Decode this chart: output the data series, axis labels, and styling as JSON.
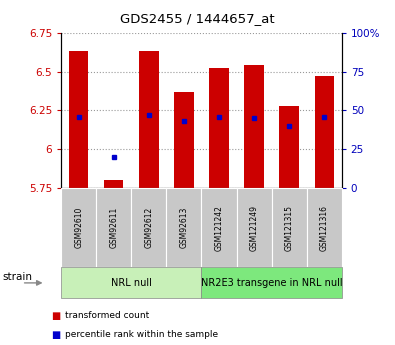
{
  "title": "GDS2455 / 1444657_at",
  "samples": [
    "GSM92610",
    "GSM92611",
    "GSM92612",
    "GSM92613",
    "GSM121242",
    "GSM121249",
    "GSM121315",
    "GSM121316"
  ],
  "transformed_counts": [
    6.63,
    5.8,
    6.63,
    6.37,
    6.52,
    6.54,
    6.28,
    6.47
  ],
  "percentile_ranks": [
    46,
    20,
    47,
    43,
    46,
    45,
    40,
    46
  ],
  "ylim_left": [
    5.75,
    6.75
  ],
  "ylim_right": [
    0,
    100
  ],
  "yticks_left": [
    5.75,
    6.0,
    6.25,
    6.5,
    6.75
  ],
  "ytick_labels_left": [
    "5.75",
    "6",
    "6.25",
    "6.5",
    "6.75"
  ],
  "yticks_right": [
    0,
    25,
    50,
    75,
    100
  ],
  "ytick_labels_right": [
    "0",
    "25",
    "50",
    "75",
    "100%"
  ],
  "groups": [
    {
      "label": "NRL null",
      "indices": [
        0,
        1,
        2,
        3
      ],
      "color": "#c8f0b8"
    },
    {
      "label": "NR2E3 transgene in NRL null",
      "indices": [
        4,
        5,
        6,
        7
      ],
      "color": "#7de87d"
    }
  ],
  "bar_color": "#cc0000",
  "dot_color": "#0000cc",
  "bar_bottom": 5.75,
  "bar_width": 0.55,
  "grid_color": "#999999",
  "bg_color": "#ffffff",
  "plot_bg_color": "#ffffff",
  "legend_items": [
    {
      "label": "transformed count",
      "color": "#cc0000"
    },
    {
      "label": "percentile rank within the sample",
      "color": "#0000cc"
    }
  ],
  "strain_label": "strain",
  "left_axis_color": "#cc0000",
  "right_axis_color": "#0000bb",
  "sample_box_color": "#c8c8c8",
  "title_fontsize": 9.5
}
